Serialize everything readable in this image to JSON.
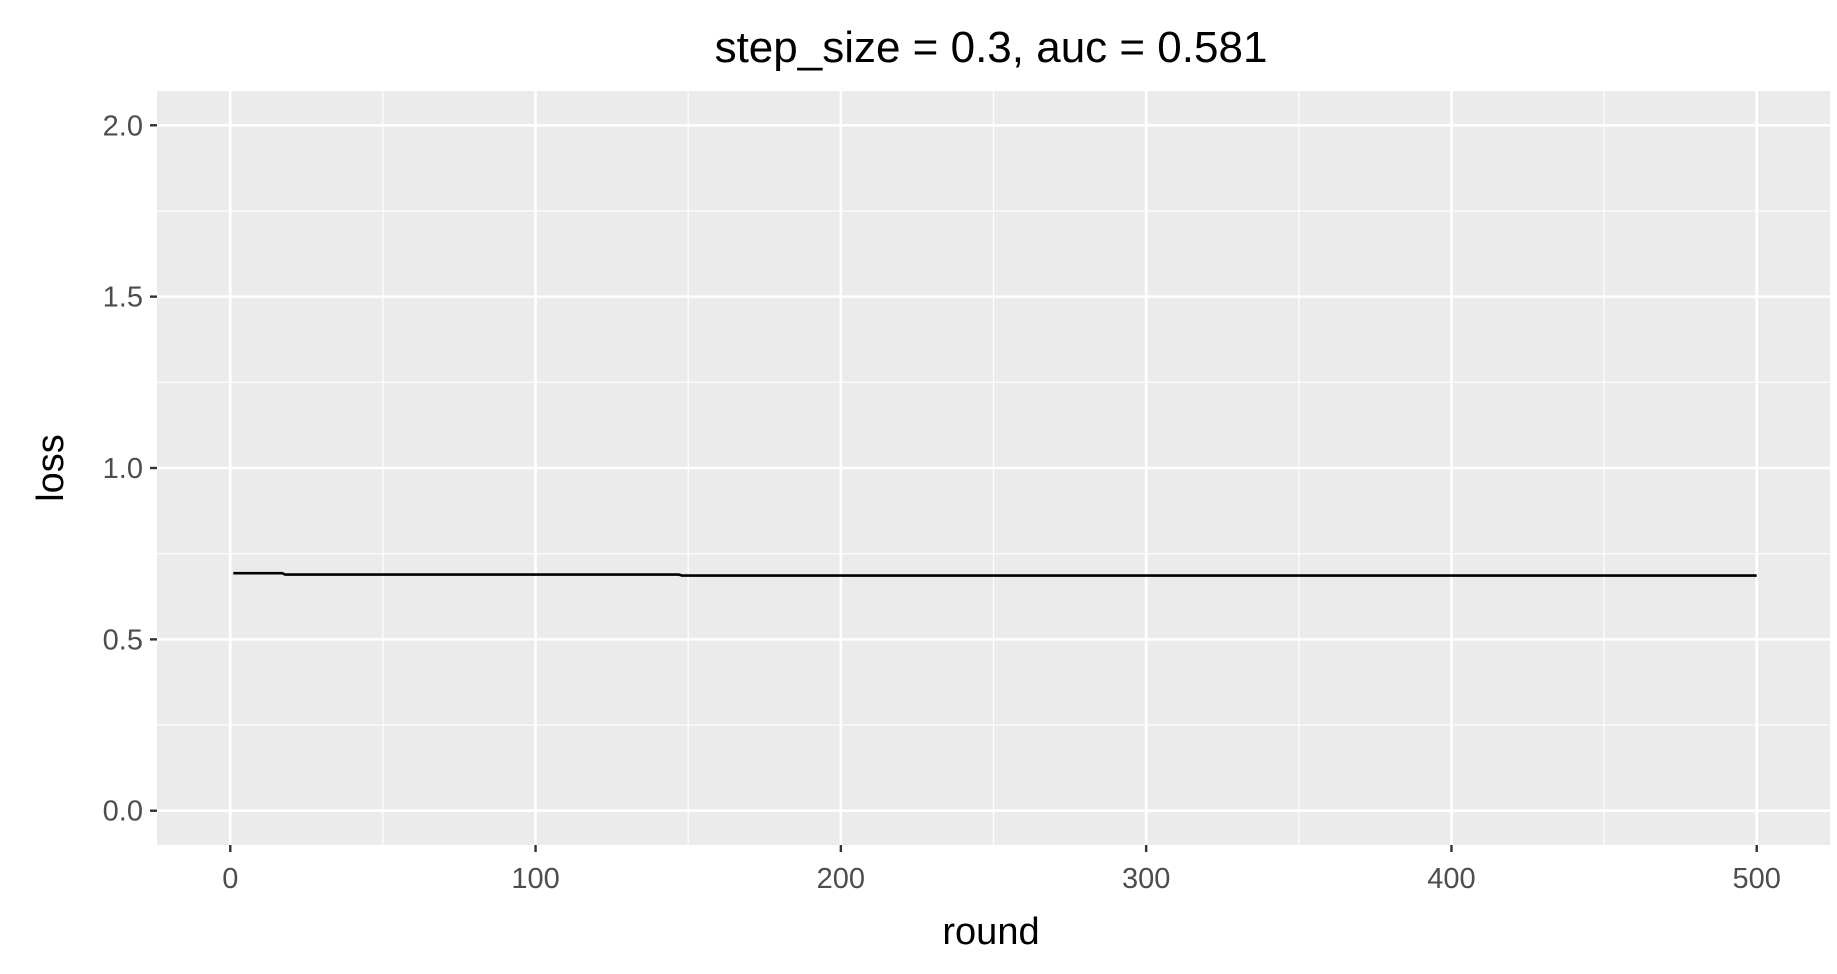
{
  "chart_data": {
    "type": "line",
    "title": "step_size = 0.3, auc = 0.581",
    "xlabel": "round",
    "ylabel": "loss",
    "xlim": [
      -24,
      524
    ],
    "ylim": [
      -0.1,
      2.1
    ],
    "x_ticks": [
      0,
      100,
      200,
      300,
      400,
      500
    ],
    "x_tick_labels": [
      "0",
      "100",
      "200",
      "300",
      "400",
      "500"
    ],
    "y_ticks": [
      0,
      0.5,
      1,
      1.5,
      2
    ],
    "y_tick_labels": [
      "0.0",
      "0.5",
      "1.0",
      "1.5",
      "2.0"
    ],
    "grid": true,
    "legend": "none",
    "colors": {
      "panel": "#ebebeb",
      "grid": "#ffffff",
      "line": "#000000",
      "tick": "#333333"
    },
    "series": [
      {
        "x": [
          1,
          17,
          18,
          147,
          148,
          500
        ],
        "y": [
          0.693,
          0.693,
          0.689,
          0.689,
          0.686,
          0.686
        ]
      }
    ]
  }
}
